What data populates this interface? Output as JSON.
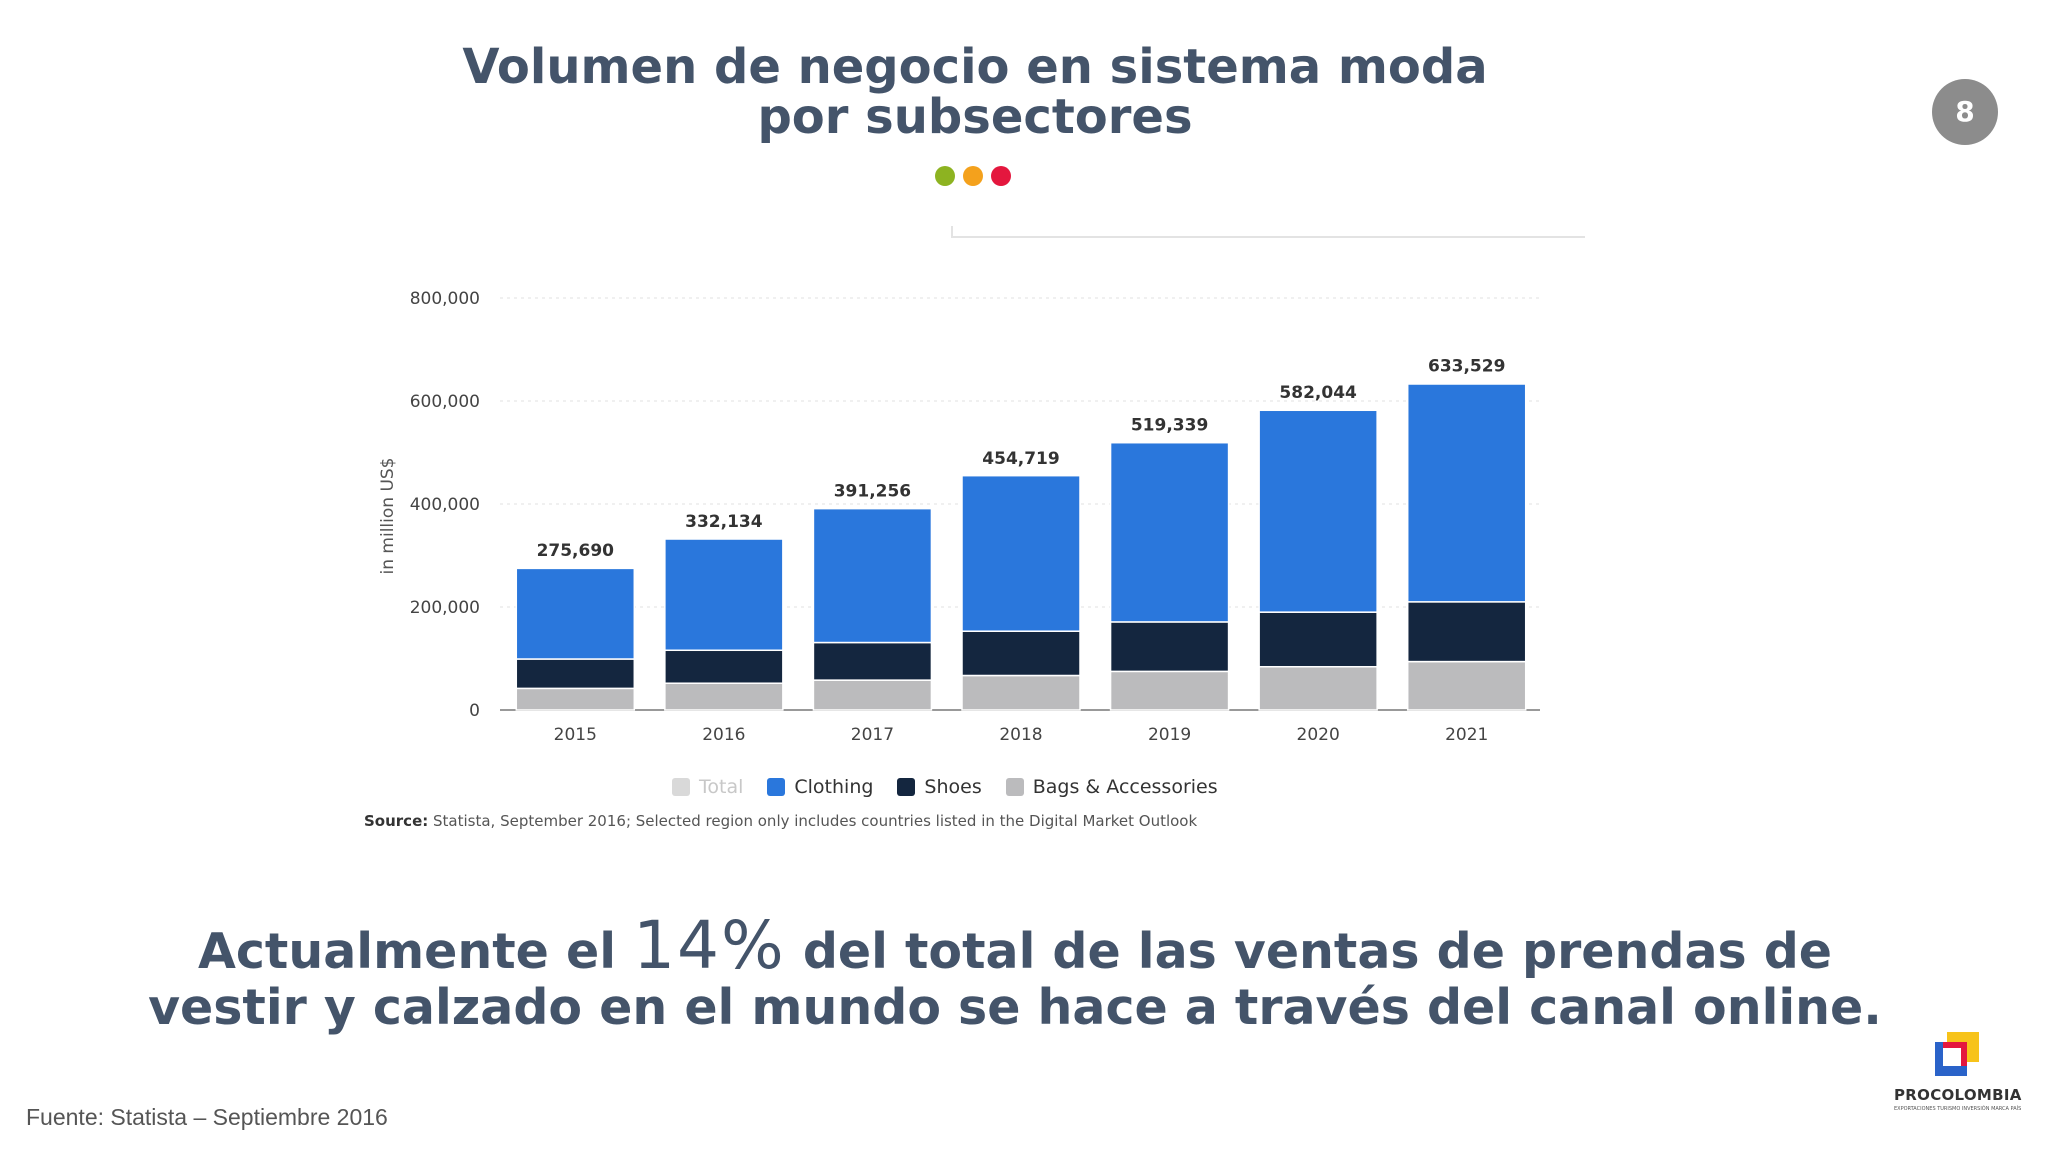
{
  "header": {
    "title_line1": "Volumen de negocio en sistema moda",
    "title_line2": "por subsectores",
    "page_number": "8",
    "dot_colors": [
      "#8db321",
      "#f4a11c",
      "#e4173e"
    ]
  },
  "chart_data": {
    "type": "bar",
    "stacked": true,
    "ylabel": "in million US$",
    "ylim": [
      0,
      800000
    ],
    "yticks": [
      "800,000",
      "600,000",
      "400,000",
      "200,000",
      "0"
    ],
    "categories": [
      "2015",
      "2016",
      "2017",
      "2018",
      "2019",
      "2020",
      "2021"
    ],
    "total_labels": [
      "275,690",
      "332,134",
      "391,256",
      "454,719",
      "519,339",
      "582,044",
      "633,529"
    ],
    "series": [
      {
        "name": "Total",
        "color": "#c8c8c8",
        "values": [
          275690,
          332134,
          391256,
          454719,
          519339,
          582044,
          633529
        ]
      },
      {
        "name": "Clothing",
        "color": "#2a77dc",
        "values": [
          176000,
          216000,
          260000,
          302000,
          348000,
          392000,
          423000
        ]
      },
      {
        "name": "Shoes",
        "color": "#14263f",
        "values": [
          57000,
          64000,
          73000,
          86000,
          96000,
          106000,
          116000
        ]
      },
      {
        "name": "Bags & Accessories",
        "color": "#bbbbbd",
        "values": [
          42000,
          52000,
          58000,
          67000,
          75000,
          84000,
          94000
        ]
      }
    ],
    "grid": true,
    "legend_position": "bottom",
    "source_label": "Source:",
    "source_text": " Statista, September 2016; Selected region only includes countries listed in the Digital Market Outlook"
  },
  "headline": {
    "line1_pre": "Actualmente el ",
    "line1_highlight": "14%",
    "line1_post": " del total de las ventas de prendas de",
    "line2": "vestir y calzado en el mundo se hace a través del canal online."
  },
  "footer": {
    "source": "Fuente: Statista – Septiembre 2016",
    "logo_text": "PROCOLOMBIA",
    "logo_sub": "EXPORTACIONES TURISMO INVERSIÓN MARCA PAÍS",
    "logo_colors": [
      "#f7c31a",
      "#2a63c9",
      "#e4173e"
    ]
  }
}
